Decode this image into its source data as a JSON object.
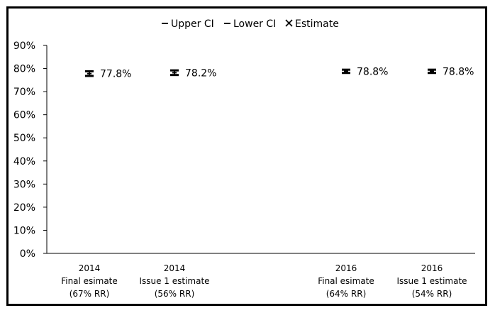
{
  "chart_data": {
    "type": "scatter",
    "categories": [
      [
        "2014",
        "Final esimate",
        "(67% RR)"
      ],
      [
        "2014",
        "Issue 1 estimate",
        "(56% RR)"
      ],
      [
        "",
        "",
        ""
      ],
      [
        "2016",
        "Final esimate",
        "(64% RR)"
      ],
      [
        "2016",
        "Issue 1 estimate",
        "(54% RR)"
      ]
    ],
    "series": [
      {
        "name": "Upper CI",
        "values": [
          78.8,
          79.2,
          null,
          79.5,
          79.5
        ]
      },
      {
        "name": "Lower CI",
        "values": [
          76.8,
          77.2,
          null,
          78.1,
          78.1
        ]
      },
      {
        "name": "Estimate",
        "values": [
          77.8,
          78.2,
          null,
          78.8,
          78.8
        ]
      }
    ],
    "data_labels": [
      "77.8%",
      "78.2%",
      "",
      "78.8%",
      "78.8%"
    ],
    "yticks": [
      "0%",
      "10%",
      "20%",
      "30%",
      "40%",
      "50%",
      "60%",
      "70%",
      "80%",
      "90%"
    ],
    "ylim": [
      0,
      90
    ],
    "grid": false,
    "legend_position": "top",
    "legend": [
      {
        "marker": "−",
        "label": "Upper CI"
      },
      {
        "marker": "−",
        "label": "Lower CI"
      },
      {
        "marker": "×",
        "label": "Estimate"
      }
    ],
    "colors": {
      "marks": "#000000",
      "frame": "#000000"
    }
  }
}
